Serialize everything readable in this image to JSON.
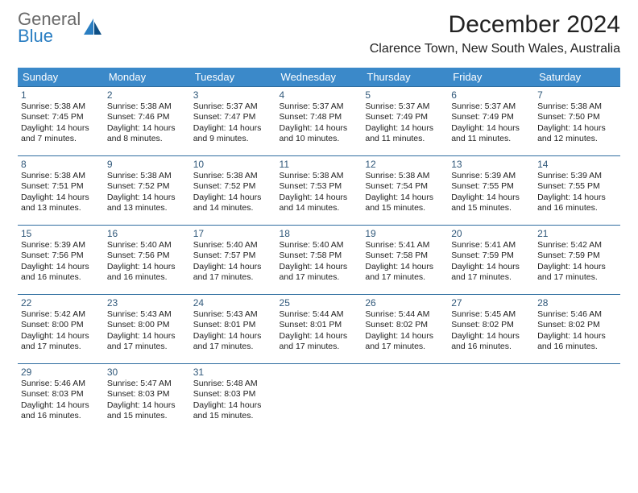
{
  "logo": {
    "brand_part1": "General",
    "brand_part2": "Blue"
  },
  "title": {
    "month": "December 2024",
    "location": "Clarence Town, New South Wales, Australia"
  },
  "colors": {
    "header_bg": "#3b89c9",
    "header_fg": "#ffffff",
    "divider": "#2f6ea0",
    "logo_gray": "#6a6a6a",
    "logo_blue": "#2a7ec2",
    "background": "#ffffff",
    "text": "#222222",
    "daynum": "#30587a"
  },
  "day_headers": [
    "Sunday",
    "Monday",
    "Tuesday",
    "Wednesday",
    "Thursday",
    "Friday",
    "Saturday"
  ],
  "weeks": [
    [
      {
        "n": "1",
        "sr": "Sunrise: 5:38 AM",
        "ss": "Sunset: 7:45 PM",
        "d1": "Daylight: 14 hours",
        "d2": "and 7 minutes."
      },
      {
        "n": "2",
        "sr": "Sunrise: 5:38 AM",
        "ss": "Sunset: 7:46 PM",
        "d1": "Daylight: 14 hours",
        "d2": "and 8 minutes."
      },
      {
        "n": "3",
        "sr": "Sunrise: 5:37 AM",
        "ss": "Sunset: 7:47 PM",
        "d1": "Daylight: 14 hours",
        "d2": "and 9 minutes."
      },
      {
        "n": "4",
        "sr": "Sunrise: 5:37 AM",
        "ss": "Sunset: 7:48 PM",
        "d1": "Daylight: 14 hours",
        "d2": "and 10 minutes."
      },
      {
        "n": "5",
        "sr": "Sunrise: 5:37 AM",
        "ss": "Sunset: 7:49 PM",
        "d1": "Daylight: 14 hours",
        "d2": "and 11 minutes."
      },
      {
        "n": "6",
        "sr": "Sunrise: 5:37 AM",
        "ss": "Sunset: 7:49 PM",
        "d1": "Daylight: 14 hours",
        "d2": "and 11 minutes."
      },
      {
        "n": "7",
        "sr": "Sunrise: 5:38 AM",
        "ss": "Sunset: 7:50 PM",
        "d1": "Daylight: 14 hours",
        "d2": "and 12 minutes."
      }
    ],
    [
      {
        "n": "8",
        "sr": "Sunrise: 5:38 AM",
        "ss": "Sunset: 7:51 PM",
        "d1": "Daylight: 14 hours",
        "d2": "and 13 minutes."
      },
      {
        "n": "9",
        "sr": "Sunrise: 5:38 AM",
        "ss": "Sunset: 7:52 PM",
        "d1": "Daylight: 14 hours",
        "d2": "and 13 minutes."
      },
      {
        "n": "10",
        "sr": "Sunrise: 5:38 AM",
        "ss": "Sunset: 7:52 PM",
        "d1": "Daylight: 14 hours",
        "d2": "and 14 minutes."
      },
      {
        "n": "11",
        "sr": "Sunrise: 5:38 AM",
        "ss": "Sunset: 7:53 PM",
        "d1": "Daylight: 14 hours",
        "d2": "and 14 minutes."
      },
      {
        "n": "12",
        "sr": "Sunrise: 5:38 AM",
        "ss": "Sunset: 7:54 PM",
        "d1": "Daylight: 14 hours",
        "d2": "and 15 minutes."
      },
      {
        "n": "13",
        "sr": "Sunrise: 5:39 AM",
        "ss": "Sunset: 7:55 PM",
        "d1": "Daylight: 14 hours",
        "d2": "and 15 minutes."
      },
      {
        "n": "14",
        "sr": "Sunrise: 5:39 AM",
        "ss": "Sunset: 7:55 PM",
        "d1": "Daylight: 14 hours",
        "d2": "and 16 minutes."
      }
    ],
    [
      {
        "n": "15",
        "sr": "Sunrise: 5:39 AM",
        "ss": "Sunset: 7:56 PM",
        "d1": "Daylight: 14 hours",
        "d2": "and 16 minutes."
      },
      {
        "n": "16",
        "sr": "Sunrise: 5:40 AM",
        "ss": "Sunset: 7:56 PM",
        "d1": "Daylight: 14 hours",
        "d2": "and 16 minutes."
      },
      {
        "n": "17",
        "sr": "Sunrise: 5:40 AM",
        "ss": "Sunset: 7:57 PM",
        "d1": "Daylight: 14 hours",
        "d2": "and 17 minutes."
      },
      {
        "n": "18",
        "sr": "Sunrise: 5:40 AM",
        "ss": "Sunset: 7:58 PM",
        "d1": "Daylight: 14 hours",
        "d2": "and 17 minutes."
      },
      {
        "n": "19",
        "sr": "Sunrise: 5:41 AM",
        "ss": "Sunset: 7:58 PM",
        "d1": "Daylight: 14 hours",
        "d2": "and 17 minutes."
      },
      {
        "n": "20",
        "sr": "Sunrise: 5:41 AM",
        "ss": "Sunset: 7:59 PM",
        "d1": "Daylight: 14 hours",
        "d2": "and 17 minutes."
      },
      {
        "n": "21",
        "sr": "Sunrise: 5:42 AM",
        "ss": "Sunset: 7:59 PM",
        "d1": "Daylight: 14 hours",
        "d2": "and 17 minutes."
      }
    ],
    [
      {
        "n": "22",
        "sr": "Sunrise: 5:42 AM",
        "ss": "Sunset: 8:00 PM",
        "d1": "Daylight: 14 hours",
        "d2": "and 17 minutes."
      },
      {
        "n": "23",
        "sr": "Sunrise: 5:43 AM",
        "ss": "Sunset: 8:00 PM",
        "d1": "Daylight: 14 hours",
        "d2": "and 17 minutes."
      },
      {
        "n": "24",
        "sr": "Sunrise: 5:43 AM",
        "ss": "Sunset: 8:01 PM",
        "d1": "Daylight: 14 hours",
        "d2": "and 17 minutes."
      },
      {
        "n": "25",
        "sr": "Sunrise: 5:44 AM",
        "ss": "Sunset: 8:01 PM",
        "d1": "Daylight: 14 hours",
        "d2": "and 17 minutes."
      },
      {
        "n": "26",
        "sr": "Sunrise: 5:44 AM",
        "ss": "Sunset: 8:02 PM",
        "d1": "Daylight: 14 hours",
        "d2": "and 17 minutes."
      },
      {
        "n": "27",
        "sr": "Sunrise: 5:45 AM",
        "ss": "Sunset: 8:02 PM",
        "d1": "Daylight: 14 hours",
        "d2": "and 16 minutes."
      },
      {
        "n": "28",
        "sr": "Sunrise: 5:46 AM",
        "ss": "Sunset: 8:02 PM",
        "d1": "Daylight: 14 hours",
        "d2": "and 16 minutes."
      }
    ],
    [
      {
        "n": "29",
        "sr": "Sunrise: 5:46 AM",
        "ss": "Sunset: 8:03 PM",
        "d1": "Daylight: 14 hours",
        "d2": "and 16 minutes."
      },
      {
        "n": "30",
        "sr": "Sunrise: 5:47 AM",
        "ss": "Sunset: 8:03 PM",
        "d1": "Daylight: 14 hours",
        "d2": "and 15 minutes."
      },
      {
        "n": "31",
        "sr": "Sunrise: 5:48 AM",
        "ss": "Sunset: 8:03 PM",
        "d1": "Daylight: 14 hours",
        "d2": "and 15 minutes."
      },
      null,
      null,
      null,
      null
    ]
  ]
}
